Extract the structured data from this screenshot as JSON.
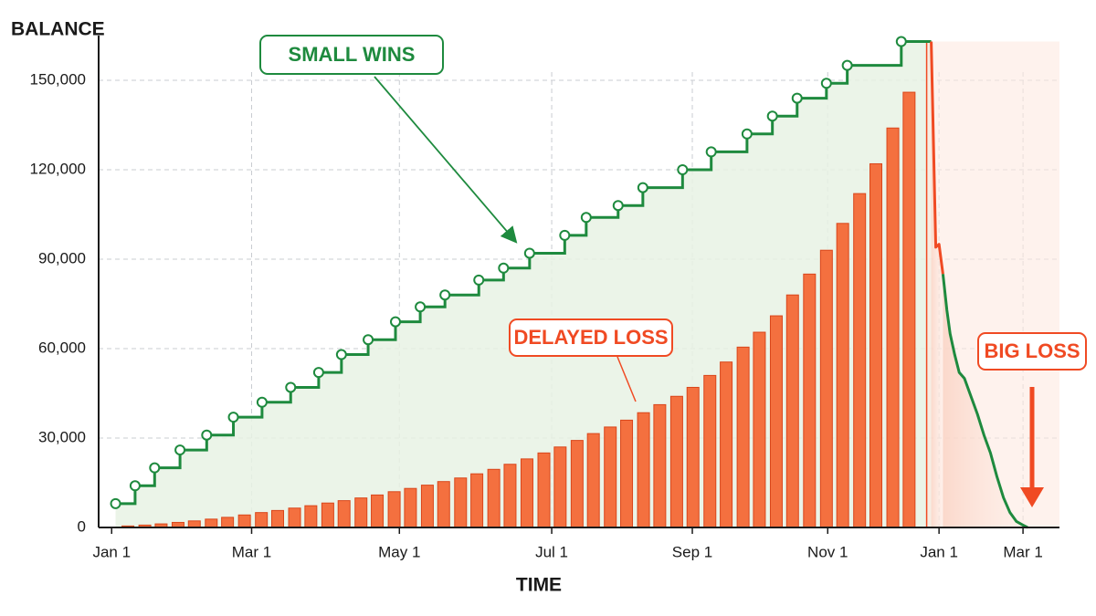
{
  "chart_data": {
    "type": "combo",
    "y_label": "BALANCE",
    "x_label": "TIME",
    "xlim": [
      -0.2,
      14.56
    ],
    "ylim": [
      0,
      165000
    ],
    "xticks": [
      {
        "value": 0,
        "label": "Jan 1"
      },
      {
        "value": 2.15,
        "label": "Mar 1"
      },
      {
        "value": 4.42,
        "label": "May 1"
      },
      {
        "value": 6.76,
        "label": "Jul 1"
      },
      {
        "value": 8.92,
        "label": "Sep 1"
      },
      {
        "value": 11.0,
        "label": "Nov 1"
      },
      {
        "value": 12.71,
        "label": "Jan 1"
      },
      {
        "value": 14.0,
        "label": "Mar 1"
      }
    ],
    "yticks": [
      0,
      {
        "value": 30000,
        "label": "30,000"
      },
      {
        "value": 60000,
        "label": "60,000"
      },
      {
        "value": 90000,
        "label": "90,000"
      },
      {
        "value": 120000,
        "label": "120,000"
      },
      {
        "value": 150000,
        "label": "150,000"
      }
    ],
    "grid": true,
    "series": [
      {
        "type": "bar",
        "color": "#f4703f",
        "x": [
          0.25,
          0.51,
          0.76,
          1.02,
          1.27,
          1.53,
          1.78,
          2.04,
          2.3,
          2.55,
          2.81,
          3.06,
          3.32,
          3.57,
          3.83,
          4.08,
          4.34,
          4.59,
          4.85,
          5.1,
          5.36,
          5.61,
          5.87,
          6.12,
          6.38,
          6.64,
          6.89,
          7.15,
          7.4,
          7.66,
          7.91,
          8.17,
          8.42,
          8.68,
          8.93,
          9.19,
          9.44,
          9.7,
          9.95,
          10.21,
          10.46,
          10.72,
          10.98,
          11.23,
          11.49,
          11.74,
          12.0,
          12.25
        ],
        "values": [
          500,
          800,
          1200,
          1700,
          2200,
          2800,
          3400,
          4200,
          5000,
          5700,
          6500,
          7300,
          8200,
          9000,
          9900,
          10900,
          12000,
          13100,
          14200,
          15400,
          16600,
          18000,
          19500,
          21200,
          23000,
          25000,
          27000,
          29200,
          31500,
          33700,
          36000,
          38500,
          41200,
          44000,
          47000,
          51000,
          55500,
          60500,
          65500,
          71000,
          78000,
          85000,
          93000,
          102000,
          112000,
          122000,
          134000,
          146000
        ]
      },
      {
        "type": "step",
        "color": "#1e8a3e",
        "x": [
          0.06,
          0.36,
          0.66,
          1.05,
          1.46,
          1.87,
          2.31,
          2.75,
          3.18,
          3.53,
          3.94,
          4.36,
          4.74,
          5.12,
          5.64,
          6.02,
          6.42,
          6.96,
          7.29,
          7.78,
          8.16,
          8.77,
          9.21,
          9.76,
          10.15,
          10.53,
          10.98,
          11.3,
          12.13
        ],
        "values": [
          8000,
          14000,
          20000,
          26000,
          31000,
          37000,
          42000,
          47000,
          52000,
          58000,
          63000,
          69000,
          74000,
          78000,
          83000,
          87000,
          92000,
          98000,
          104000,
          108000,
          114000,
          120000,
          126000,
          132000,
          138000,
          144000,
          149000,
          155000,
          163000
        ]
      },
      {
        "type": "line",
        "color": "#f04a23",
        "x": [
          12.59,
          12.66,
          12.71,
          12.77
        ],
        "values": [
          163000,
          94000,
          95000,
          85000
        ]
      },
      {
        "type": "line",
        "color": "#1e8a3e",
        "x": [
          12.77,
          12.83,
          12.88,
          12.95,
          13.02,
          13.1,
          13.2,
          13.3,
          13.4,
          13.5,
          13.6,
          13.7,
          13.8,
          13.9,
          14.0,
          14.07
        ],
        "values": [
          85000,
          73000,
          65000,
          58000,
          52000,
          50000,
          44000,
          38000,
          31000,
          25000,
          17000,
          10000,
          5000,
          2000,
          800,
          0
        ]
      }
    ],
    "annotations": [
      {
        "text": "SMALL WINS",
        "color": "#1e8a3e"
      },
      {
        "text": "DELAYED LOSS",
        "color": "#f04a23"
      },
      {
        "text": "BIG LOSS",
        "color": "#f04a23"
      }
    ]
  }
}
